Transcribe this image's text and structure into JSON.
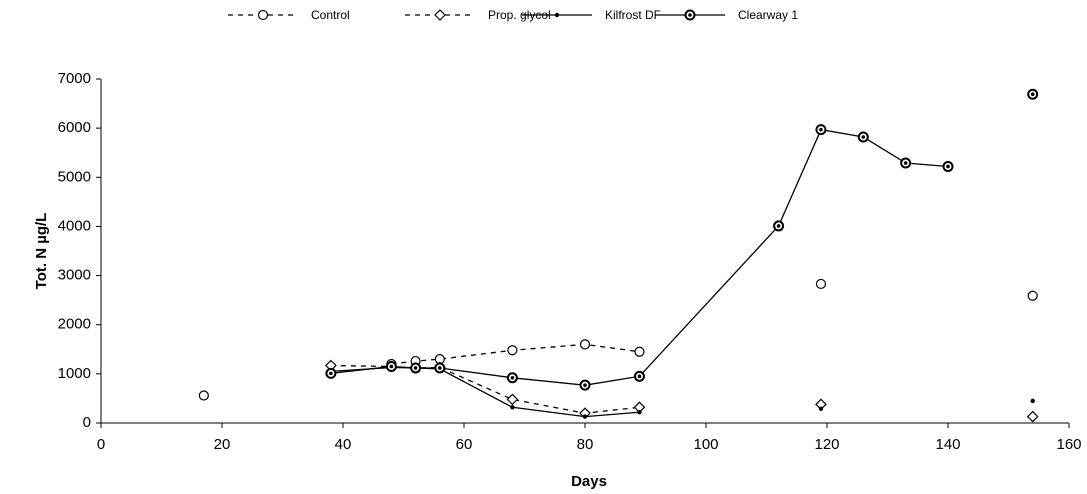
{
  "chart_data": {
    "type": "line",
    "x_label": "Days",
    "y_label": "Tot. N µg/L",
    "xlim": [
      0,
      160
    ],
    "xticks": [
      0,
      20,
      40,
      60,
      80,
      100,
      120,
      140,
      160
    ],
    "ylim": [
      0,
      7000
    ],
    "yticks": [
      0,
      1000,
      2000,
      3000,
      4000,
      5000,
      6000,
      7000
    ],
    "legend": "top",
    "series": [
      {
        "name": "Control",
        "color": "#000000",
        "dash": true,
        "marker": "circle",
        "x": [
          17,
          null,
          48,
          52,
          56,
          68,
          80,
          89,
          null,
          119,
          null,
          154
        ],
        "values": [
          560,
          null,
          1200,
          1260,
          1300,
          1480,
          1600,
          1450,
          null,
          2830,
          null,
          2590
        ]
      },
      {
        "name": "Prop. glycol",
        "color": "#000000",
        "dash": true,
        "marker": "diamond",
        "x": [
          38,
          48,
          52,
          56,
          68,
          80,
          89,
          null,
          119,
          null,
          154
        ],
        "values": [
          1170,
          1150,
          1120,
          1130,
          480,
          200,
          320,
          null,
          380,
          null,
          130
        ]
      },
      {
        "name": "Kilfrost DF",
        "color": "#000000",
        "dash": false,
        "marker": "dot",
        "x": [
          38,
          48,
          52,
          56,
          68,
          80,
          89,
          null,
          119,
          null,
          154
        ],
        "values": [
          1050,
          1130,
          1120,
          1100,
          320,
          130,
          220,
          null,
          290,
          null,
          450
        ]
      },
      {
        "name": "Clearway 1",
        "color": "#000000",
        "dash": false,
        "marker": "circle-dot",
        "x": [
          38,
          48,
          52,
          56,
          68,
          80,
          89,
          112,
          119,
          126,
          133,
          140,
          null,
          154
        ],
        "values": [
          1010,
          1150,
          1120,
          1120,
          920,
          770,
          950,
          4010,
          5970,
          5820,
          5290,
          5220,
          null,
          6690
        ]
      }
    ]
  }
}
